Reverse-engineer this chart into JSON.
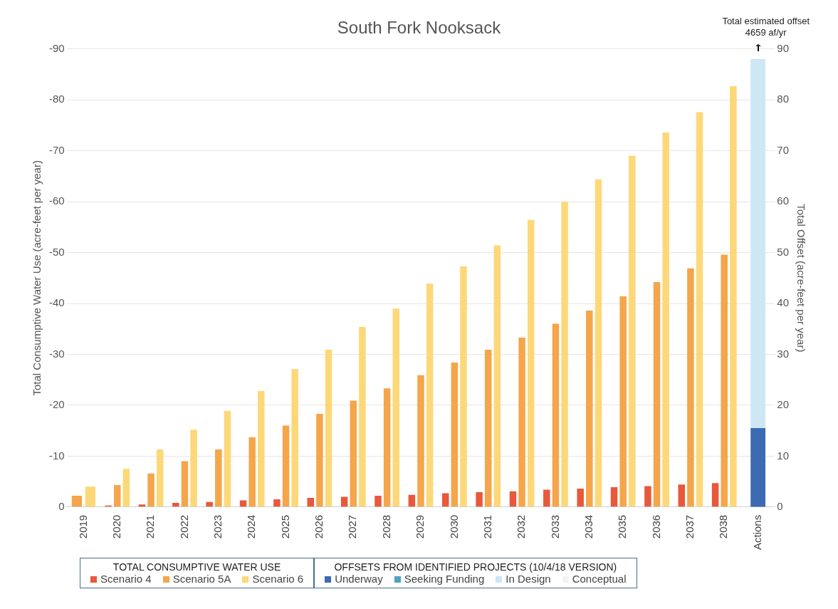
{
  "chart_data": {
    "type": "bar",
    "title": "South Fork Nooksack",
    "ylabel": "Total Consumptive Water Use (acre-feet per year)",
    "y2label": "Total Offset (acre-feet per year)",
    "categories": [
      "2019",
      "2020",
      "2021",
      "2022",
      "2023",
      "2024",
      "2025",
      "2026",
      "2027",
      "2028",
      "2029",
      "2030",
      "2031",
      "2032",
      "2033",
      "2034",
      "2035",
      "2036",
      "2037",
      "2038",
      "Actions"
    ],
    "series": [
      {
        "name": "Scenario 4",
        "color": "#e8583a",
        "values": [
          null,
          -0.3,
          -0.5,
          -0.8,
          -1.0,
          -1.3,
          -1.5,
          -1.8,
          -2.0,
          -2.2,
          -2.4,
          -2.7,
          -2.9,
          -3.1,
          -3.4,
          -3.6,
          -3.9,
          -4.1,
          -4.4,
          -4.7,
          null
        ]
      },
      {
        "name": "Scenario 5A",
        "color": "#f5a54a",
        "values": [
          -2.2,
          -4.3,
          -6.6,
          -9,
          -11.3,
          -13.7,
          -16,
          -18.3,
          -20.9,
          -23.3,
          -25.9,
          -28.4,
          -30.9,
          -33.3,
          -36,
          -38.6,
          -41.4,
          -44.2,
          -46.9,
          -49.6,
          null
        ]
      },
      {
        "name": "Scenario 6",
        "color": "#fdd878",
        "values": [
          -4,
          -7.5,
          -11.3,
          -15.2,
          -18.9,
          -22.8,
          -27.1,
          -30.9,
          -35.4,
          -39,
          -43.9,
          -47.3,
          -51.4,
          -56.4,
          -60,
          -64.4,
          -69,
          -73.6,
          -77.6,
          -82.7,
          null
        ]
      },
      {
        "name": "Underway",
        "color": "#3d6bb3",
        "axis": "y2",
        "values": [
          null,
          null,
          null,
          null,
          null,
          null,
          null,
          null,
          null,
          null,
          null,
          null,
          null,
          null,
          null,
          null,
          null,
          null,
          null,
          null,
          15.5
        ]
      },
      {
        "name": "Seeking Funding",
        "color": "#4fa3c0",
        "axis": "y2",
        "values": [
          null,
          null,
          null,
          null,
          null,
          null,
          null,
          null,
          null,
          null,
          null,
          null,
          null,
          null,
          null,
          null,
          null,
          null,
          null,
          null,
          null
        ]
      },
      {
        "name": "In Design",
        "color": "#cde7f5",
        "axis": "y2",
        "values": [
          null,
          null,
          null,
          null,
          null,
          null,
          null,
          null,
          null,
          null,
          null,
          null,
          null,
          null,
          null,
          null,
          null,
          null,
          null,
          null,
          72.5
        ],
        "base": [
          null,
          null,
          null,
          null,
          null,
          null,
          null,
          null,
          null,
          null,
          null,
          null,
          null,
          null,
          null,
          null,
          null,
          null,
          null,
          null,
          15.5
        ]
      },
      {
        "name": "Conceptual",
        "color": "#f2f2f2",
        "axis": "y2",
        "values": [
          null,
          null,
          null,
          null,
          null,
          null,
          null,
          null,
          null,
          null,
          null,
          null,
          null,
          null,
          null,
          null,
          null,
          null,
          null,
          null,
          null
        ]
      }
    ],
    "ylim": [
      0,
      -90
    ],
    "yticks": [
      0,
      -10,
      -20,
      -30,
      -40,
      -50,
      -60,
      -70,
      -80,
      -90
    ],
    "y2lim": [
      0,
      90
    ],
    "y2ticks": [
      0,
      10,
      20,
      30,
      40,
      50,
      60,
      70,
      80,
      90
    ],
    "annotations": [
      "Total estimated offset\n4659 af/yr",
      "TOTAL CONSUMPTIVE WATER USE",
      "OFFSETS FROM IDENTIFIED PROJECTS (10/4/18 VERSION)"
    ],
    "grid": "y",
    "legend": "bottom"
  }
}
